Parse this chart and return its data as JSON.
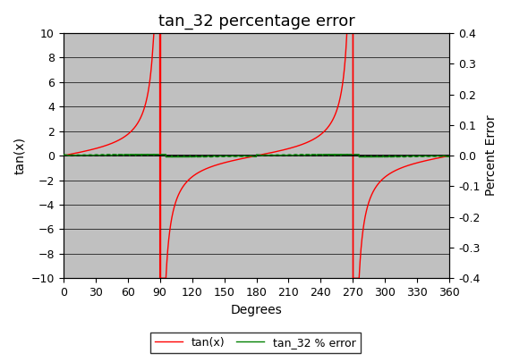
{
  "title": "tan_32 percentage error",
  "xlabel": "Degrees",
  "ylabel_left": "tan(x)",
  "ylabel_right": "Percent Error",
  "xlim": [
    0,
    360
  ],
  "ylim_left": [
    -10,
    10
  ],
  "ylim_right": [
    -0.4,
    0.4
  ],
  "xticks": [
    0,
    30,
    60,
    90,
    120,
    150,
    180,
    210,
    240,
    270,
    300,
    330,
    360
  ],
  "yticks_left": [
    -10,
    -8,
    -6,
    -4,
    -2,
    0,
    2,
    4,
    6,
    8,
    10
  ],
  "yticks_right": [
    -0.4,
    -0.3,
    -0.2,
    -0.1,
    0,
    0.1,
    0.2,
    0.3,
    0.4
  ],
  "tan_color": "#ff0000",
  "error_color": "#008000",
  "vline_color": "#ff0000",
  "background_color": "#c0c0c0",
  "outer_background": "#ffffff",
  "legend_labels": [
    "tan(x)",
    "tan_32 % error"
  ],
  "title_fontsize": 13,
  "axis_label_fontsize": 10,
  "tick_fontsize": 9,
  "clip_value": 10.0,
  "vlines": [
    90,
    270
  ],
  "error_amplitude": 0.0033,
  "error_clip": 0.4
}
